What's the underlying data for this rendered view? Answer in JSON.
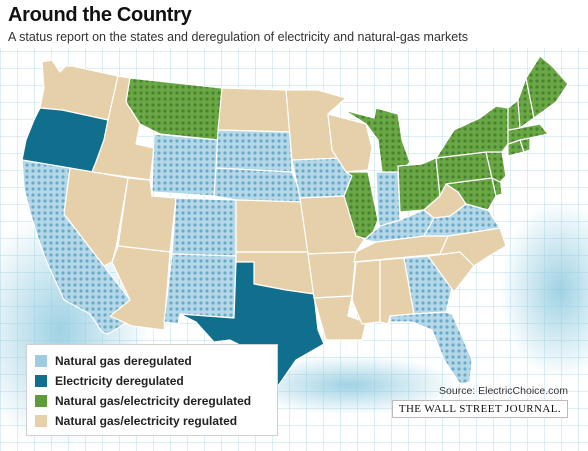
{
  "header": {
    "title": "Around the Country",
    "subtitle": "A status report on the states and deregulation of electricity and natural-gas markets"
  },
  "colors": {
    "gas": "#9ecbe0",
    "gas_dots": "#6aa9c8",
    "electricity": "#0f6f8c",
    "both": "#5e9c3a",
    "both_dots": "#4a8230",
    "regulated": "#e6d0aa",
    "grid": "#b7dde8",
    "glow": "#9fd1e2",
    "border": "#ffffff"
  },
  "legend": {
    "items": [
      {
        "label": "Natural gas deregulated",
        "color": "#9ecbe0"
      },
      {
        "label": "Electricity deregulated",
        "color": "#0f6f8c"
      },
      {
        "label": "Natural gas/electricity deregulated",
        "color": "#5e9c3a"
      },
      {
        "label": "Natural gas/electricity regulated",
        "color": "#e6d0aa"
      }
    ]
  },
  "credits": {
    "source": "Source: ElectricChoice.com",
    "publisher": "THE WALL STREET JOURNAL."
  },
  "map": {
    "states": {
      "WA": "regulated",
      "OR": "electricity",
      "CA": "gas",
      "ID": "regulated",
      "NV": "regulated",
      "AZ": "regulated",
      "UT": "regulated",
      "MT": "both",
      "WY": "gas",
      "CO": "gas",
      "NM": "gas",
      "TX": "electricity",
      "ND": "regulated",
      "SD": "gas",
      "NE": "gas",
      "KS": "regulated",
      "OK": "regulated",
      "MN": "regulated",
      "IA": "gas",
      "MO": "regulated",
      "AR": "regulated",
      "LA": "regulated",
      "WI": "regulated",
      "IL": "both",
      "IN": "gas",
      "MI": "both",
      "OH": "both",
      "KY": "gas",
      "TN": "regulated",
      "MS": "regulated",
      "AL": "regulated",
      "GA": "gas",
      "FL": "gas",
      "SC": "regulated",
      "NC": "regulated",
      "VA": "gas",
      "WV": "regulated",
      "PA": "both",
      "NY": "both",
      "NJ": "both",
      "DE": "both",
      "MD": "both",
      "CT": "both",
      "RI": "both",
      "MA": "both",
      "VT": "both",
      "NH": "both",
      "ME": "both"
    }
  }
}
